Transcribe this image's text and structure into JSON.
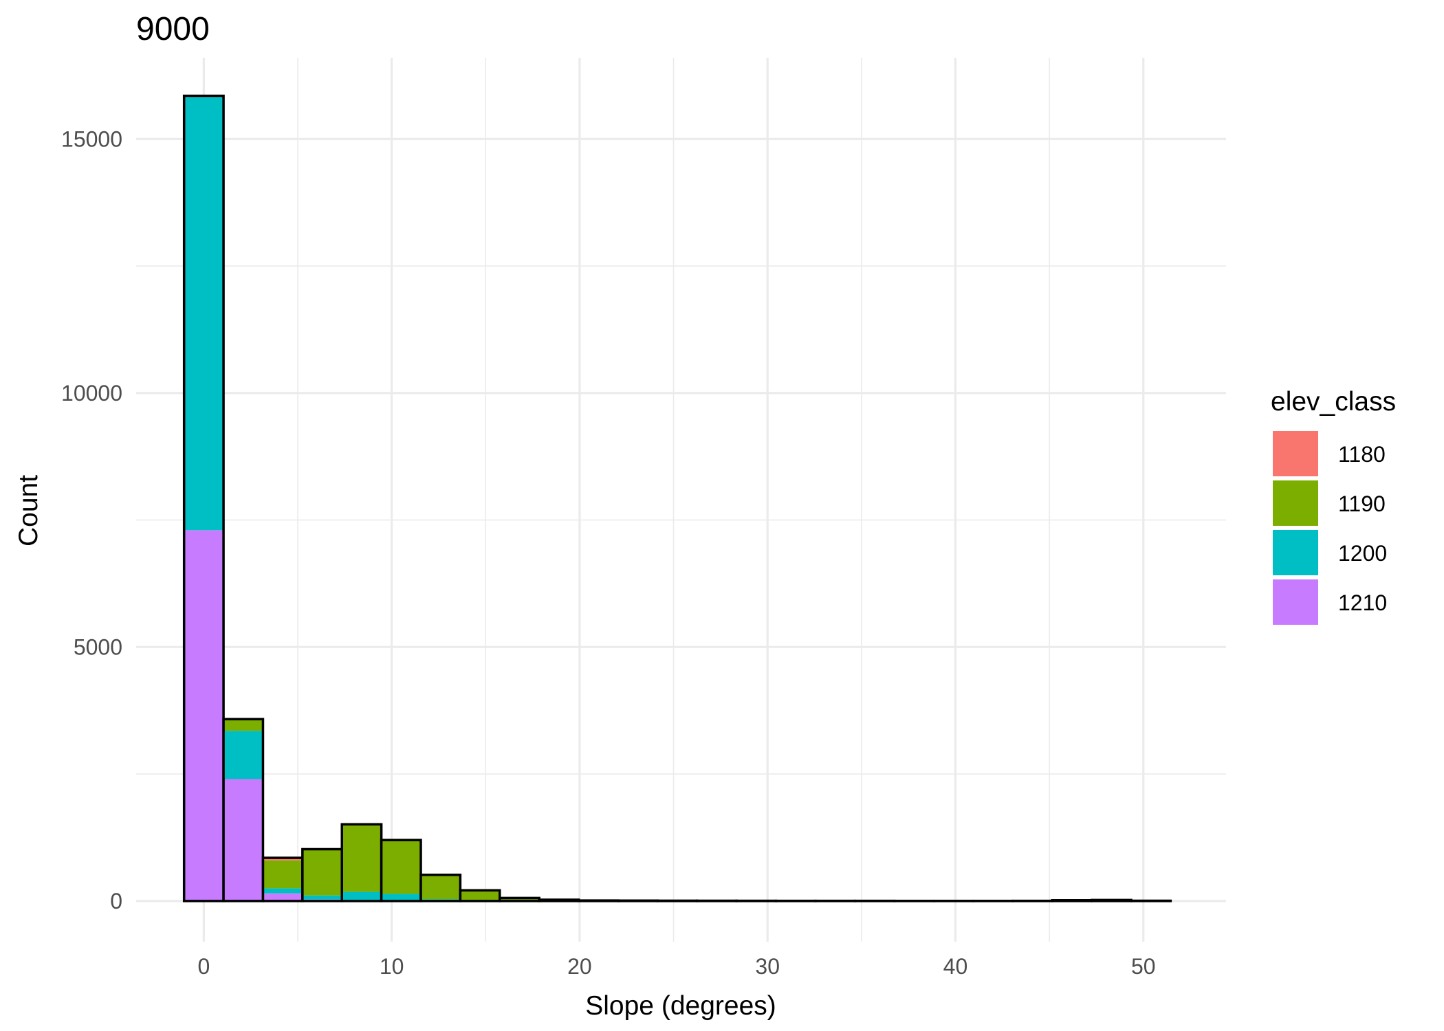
{
  "chart_data": {
    "type": "bar",
    "title": "9000",
    "xlabel": "Slope (degrees)",
    "ylabel": "Count",
    "xlim": [
      -3.6,
      54.4
    ],
    "ylim": [
      -800,
      16600
    ],
    "x_ticks": [
      0,
      10,
      20,
      30,
      40,
      50
    ],
    "y_ticks": [
      0,
      5000,
      10000,
      15000
    ],
    "grid": true,
    "stacked": true,
    "bin_edges": [
      -1.05,
      1.05,
      3.15,
      5.25,
      7.35,
      9.45,
      11.55,
      13.65,
      15.75,
      17.85,
      19.95,
      22.05,
      24.15,
      26.25,
      28.35,
      30.45,
      32.55,
      34.65,
      36.75,
      38.85,
      40.95,
      43.05,
      45.15,
      47.25,
      49.35,
      51.45
    ],
    "legend": {
      "title": "elev_class",
      "position": "right"
    },
    "series": [
      {
        "name": "1210",
        "color": "#C77CFF",
        "values": [
          7300,
          2400,
          150,
          30,
          20,
          10,
          5,
          0,
          0,
          0,
          0,
          0,
          0,
          0,
          0,
          0,
          0,
          0,
          0,
          0,
          0,
          0,
          0,
          0,
          0
        ]
      },
      {
        "name": "1200",
        "color": "#00BFC4",
        "values": [
          8550,
          950,
          100,
          80,
          160,
          130,
          30,
          10,
          0,
          0,
          0,
          0,
          0,
          0,
          0,
          0,
          0,
          0,
          0,
          0,
          0,
          0,
          0,
          0,
          0
        ]
      },
      {
        "name": "1190",
        "color": "#7CAE00",
        "values": [
          0,
          230,
          550,
          890,
          1320,
          1060,
          480,
          200,
          60,
          25,
          10,
          8,
          6,
          5,
          4,
          3,
          3,
          3,
          2,
          2,
          2,
          3,
          15,
          20,
          5
        ]
      },
      {
        "name": "1180",
        "color": "#F8766D",
        "values": [
          0,
          0,
          50,
          20,
          10,
          0,
          0,
          0,
          0,
          0,
          0,
          0,
          0,
          0,
          0,
          0,
          0,
          0,
          0,
          0,
          0,
          0,
          0,
          0,
          0
        ]
      }
    ]
  }
}
